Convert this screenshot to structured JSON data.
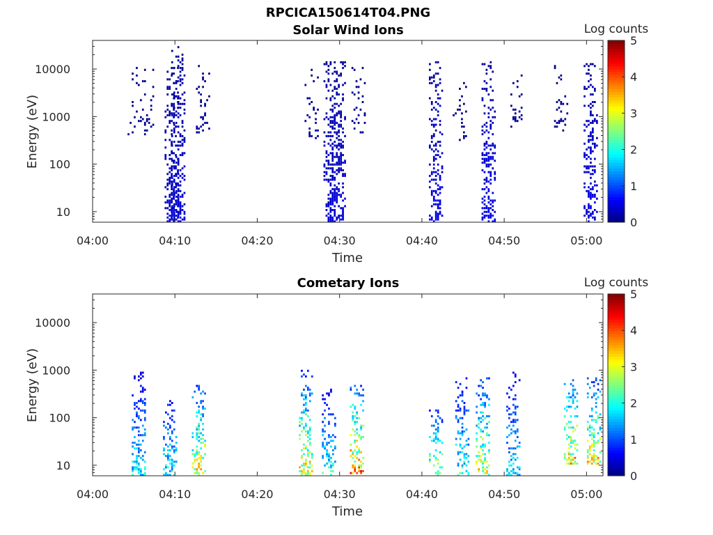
{
  "figure_title": "RPCICA150614T04.PNG",
  "chart_data": [
    {
      "type": "heatmap",
      "title": "Solar Wind Ions",
      "xlabel": "Time",
      "ylabel": "Energy (eV)",
      "y_scale": "log",
      "xlim": [
        "04:00",
        "05:02"
      ],
      "ylim": [
        6,
        40000
      ],
      "x_ticks": [
        "04:00",
        "04:10",
        "04:20",
        "04:30",
        "04:40",
        "04:50",
        "05:00"
      ],
      "y_ticks": [
        "10",
        "100",
        "1000",
        "10000"
      ],
      "colorbar": {
        "label": "Log counts",
        "min": 0,
        "max": 5,
        "ticks": [
          "0",
          "1",
          "2",
          "3",
          "4",
          "5"
        ],
        "colormap": "jet"
      },
      "grid": false,
      "bursts": [
        {
          "time_min": 5.0,
          "emin": 400,
          "emax": 20000,
          "level": 0.1,
          "density": 0.12
        },
        {
          "time_min": 6.5,
          "emin": 400,
          "emax": 10000,
          "level": 0.1,
          "density": 0.25
        },
        {
          "time_min": 9.5,
          "emin": 6,
          "emax": 12000,
          "level": 0.35,
          "density": 0.55
        },
        {
          "time_min": 10.3,
          "emin": 6,
          "emax": 35000,
          "level": 0.4,
          "density": 0.6
        },
        {
          "time_min": 13.3,
          "emin": 400,
          "emax": 12000,
          "level": 0.15,
          "density": 0.35
        },
        {
          "time_min": 26.5,
          "emin": 300,
          "emax": 10000,
          "level": 0.15,
          "density": 0.2
        },
        {
          "time_min": 28.8,
          "emin": 6,
          "emax": 14000,
          "level": 0.4,
          "density": 0.55
        },
        {
          "time_min": 29.8,
          "emin": 6,
          "emax": 14000,
          "level": 0.4,
          "density": 0.55
        },
        {
          "time_min": 32.2,
          "emin": 400,
          "emax": 12000,
          "level": 0.1,
          "density": 0.25
        },
        {
          "time_min": 41.6,
          "emin": 6,
          "emax": 14000,
          "level": 0.5,
          "density": 0.55
        },
        {
          "time_min": 44.5,
          "emin": 300,
          "emax": 8000,
          "level": 0.1,
          "density": 0.25
        },
        {
          "time_min": 48.0,
          "emin": 6,
          "emax": 14000,
          "level": 0.55,
          "density": 0.6
        },
        {
          "time_min": 51.5,
          "emin": 600,
          "emax": 8000,
          "level": 0.1,
          "density": 0.3
        },
        {
          "time_min": 56.8,
          "emin": 500,
          "emax": 12000,
          "level": 0.1,
          "density": 0.2
        },
        {
          "time_min": 60.4,
          "emin": 6,
          "emax": 14000,
          "level": 0.5,
          "density": 0.55
        }
      ]
    },
    {
      "type": "heatmap",
      "title": "Cometary Ions",
      "xlabel": "Time",
      "ylabel": "Energy (eV)",
      "y_scale": "log",
      "xlim": [
        "04:00",
        "05:02"
      ],
      "ylim": [
        6,
        40000
      ],
      "x_ticks": [
        "04:00",
        "04:10",
        "04:20",
        "04:30",
        "04:40",
        "04:50",
        "05:00"
      ],
      "y_ticks": [
        "10",
        "100",
        "1000",
        "10000"
      ],
      "colorbar": {
        "label": "Log counts",
        "min": 0,
        "max": 5,
        "ticks": [
          "0",
          "1",
          "2",
          "3",
          "4",
          "5"
        ],
        "colormap": "jet"
      },
      "grid": false,
      "bursts": [
        {
          "time_min": 5.5,
          "emin": 6,
          "emax": 1000,
          "level": 1.6,
          "density": 0.55
        },
        {
          "time_min": 9.3,
          "emin": 6,
          "emax": 300,
          "level": 1.7,
          "density": 0.5
        },
        {
          "time_min": 12.8,
          "emin": 6,
          "emax": 600,
          "level": 2.8,
          "density": 0.55
        },
        {
          "time_min": 25.8,
          "emin": 6,
          "emax": 1000,
          "level": 2.8,
          "density": 0.55
        },
        {
          "time_min": 28.6,
          "emin": 6,
          "emax": 400,
          "level": 1.8,
          "density": 0.5
        },
        {
          "time_min": 32.0,
          "emin": 6,
          "emax": 500,
          "level": 3.4,
          "density": 0.55
        },
        {
          "time_min": 41.6,
          "emin": 6,
          "emax": 150,
          "level": 2.6,
          "density": 0.45
        },
        {
          "time_min": 44.8,
          "emin": 6,
          "emax": 800,
          "level": 1.8,
          "density": 0.45
        },
        {
          "time_min": 47.3,
          "emin": 6,
          "emax": 800,
          "level": 2.7,
          "density": 0.5
        },
        {
          "time_min": 51.0,
          "emin": 6,
          "emax": 1100,
          "level": 1.5,
          "density": 0.45
        },
        {
          "time_min": 58.0,
          "emin": 10,
          "emax": 900,
          "level": 3.0,
          "density": 0.55
        },
        {
          "time_min": 60.8,
          "emin": 10,
          "emax": 800,
          "level": 2.9,
          "density": 0.55
        }
      ]
    }
  ]
}
